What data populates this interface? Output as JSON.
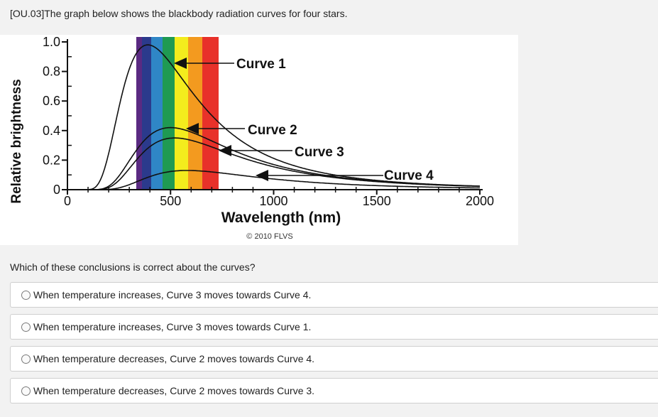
{
  "question": {
    "text": "[OU.03]The graph below shows the blackbody radiation curves for four stars.",
    "prompt": "Which of these conclusions is correct about the curves?"
  },
  "figure": {
    "copyright": "© 2010 FLVS",
    "spectrum_colors": [
      "#5a2a82",
      "#2b3a8c",
      "#2f86c6",
      "#1f9a52",
      "#f3ec1d",
      "#f39a1f",
      "#e8312a"
    ]
  },
  "chart_data": {
    "type": "line",
    "xlabel": "Wavelength (nm)",
    "ylabel": "Relative brightness",
    "xlim": [
      0,
      2000
    ],
    "ylim": [
      0,
      1.0
    ],
    "x_ticks": [
      "0",
      "500",
      "1000",
      "1500",
      "2000"
    ],
    "y_ticks": [
      "0",
      "0.2",
      "0.4",
      "0.6",
      "0.8",
      "1.0"
    ],
    "grid": false,
    "series": [
      {
        "name": "Curve 4",
        "peak_wavelength": 390,
        "peak_value": 0.98
      },
      {
        "name": "Curve 3",
        "peak_wavelength": 500,
        "peak_value": 0.42
      },
      {
        "name": "Curve 2",
        "peak_wavelength": 520,
        "peak_value": 0.35
      },
      {
        "name": "Curve 1",
        "peak_wavelength": 580,
        "peak_value": 0.13
      }
    ]
  },
  "options": [
    {
      "label": "When temperature increases, Curve 3 moves towards Curve 4."
    },
    {
      "label": "When temperature increases, Curve 3 moves towards Curve 1."
    },
    {
      "label": "When temperature decreases, Curve 2 moves towards Curve 4."
    },
    {
      "label": "When temperature decreases, Curve 2 moves towards Curve 3."
    }
  ]
}
